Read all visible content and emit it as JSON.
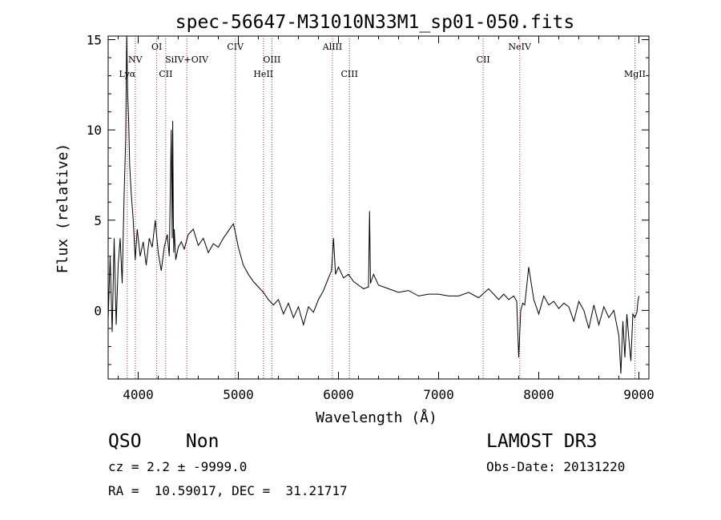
{
  "chart_data": {
    "type": "line",
    "title": "spec-56647-M31010N33M1_sp01-050.fits",
    "xlabel": "Wavelength (Å)",
    "ylabel": "Flux (relative)",
    "xlim": [
      3700,
      9100
    ],
    "ylim": [
      -3.8,
      15.2
    ],
    "xticks": [
      4000,
      5000,
      6000,
      7000,
      8000,
      9000
    ],
    "yticks": [
      0,
      5,
      10,
      15
    ],
    "grid": false,
    "line_color": "#000000",
    "marker_color": "#b03020",
    "line_markers": [
      {
        "label": "Lyα",
        "wavelength": 3891,
        "row": 3
      },
      {
        "label": "NV",
        "wavelength": 3970,
        "row": 2
      },
      {
        "label": "OI",
        "wavelength": 4185,
        "row": 1
      },
      {
        "label": "CII",
        "wavelength": 4275,
        "row": 3
      },
      {
        "label": "SiIV+OIV",
        "wavelength": 4485,
        "row": 2
      },
      {
        "label": "CIV",
        "wavelength": 4970,
        "row": 1
      },
      {
        "label": "HeII",
        "wavelength": 5250,
        "row": 3
      },
      {
        "label": "OIII",
        "wavelength": 5335,
        "row": 2
      },
      {
        "label": "AlIII",
        "wavelength": 5940,
        "row": 1
      },
      {
        "label": "CIII",
        "wavelength": 6110,
        "row": 3
      },
      {
        "label": "CII",
        "wavelength": 7445,
        "row": 2
      },
      {
        "label": "NeIV",
        "wavelength": 7810,
        "row": 1
      },
      {
        "label": "MgII",
        "wavelength": 8960,
        "row": 3
      }
    ],
    "series": [
      {
        "x": [
          3700,
          3720,
          3740,
          3760,
          3780,
          3800,
          3820,
          3840,
          3860,
          3875,
          3885,
          3895,
          3905,
          3915,
          3930,
          3950,
          3970,
          3990,
          4020,
          4050,
          4080,
          4110,
          4140,
          4170,
          4200,
          4230,
          4260,
          4290,
          4310,
          4330,
          4340,
          4345,
          4350,
          4355,
          4360,
          4375,
          4400,
          4430,
          4460,
          4500,
          4550,
          4600,
          4650,
          4700,
          4750,
          4800,
          4850,
          4900,
          4950,
          4975,
          5000,
          5050,
          5100,
          5150,
          5200,
          5250,
          5300,
          5350,
          5400,
          5450,
          5500,
          5550,
          5600,
          5650,
          5700,
          5750,
          5800,
          5850,
          5900,
          5930,
          5950,
          5970,
          6000,
          6050,
          6100,
          6150,
          6200,
          6250,
          6300,
          6310,
          6320,
          6350,
          6400,
          6500,
          6600,
          6700,
          6800,
          6900,
          7000,
          7100,
          7200,
          7300,
          7400,
          7500,
          7600,
          7650,
          7700,
          7750,
          7780,
          7800,
          7820,
          7840,
          7860,
          7900,
          7950,
          8000,
          8050,
          8100,
          8150,
          8200,
          8250,
          8300,
          8350,
          8400,
          8450,
          8500,
          8550,
          8600,
          8650,
          8700,
          8750,
          8800,
          8820,
          8840,
          8860,
          8880,
          8900,
          8920,
          8940,
          8960,
          8980,
          8990,
          9000
        ],
        "y": [
          -0.5,
          3.0,
          -1.2,
          4.0,
          -0.8,
          2.5,
          4.0,
          1.5,
          6.5,
          9.5,
          15.2,
          12.0,
          10.5,
          8.0,
          6.5,
          5.0,
          2.8,
          4.5,
          3.0,
          3.8,
          2.5,
          4.0,
          3.5,
          5.0,
          3.2,
          2.2,
          3.5,
          4.2,
          3.0,
          10.0,
          4.0,
          10.5,
          5.5,
          3.2,
          4.5,
          2.8,
          3.5,
          3.8,
          3.4,
          4.2,
          4.5,
          3.6,
          4.0,
          3.2,
          3.7,
          3.5,
          4.0,
          4.4,
          4.8,
          4.2,
          3.5,
          2.5,
          2.0,
          1.6,
          1.3,
          1.0,
          0.6,
          0.3,
          0.6,
          -0.2,
          0.4,
          -0.4,
          0.2,
          -0.8,
          0.2,
          -0.1,
          0.6,
          1.1,
          1.8,
          2.2,
          4.0,
          2.0,
          2.4,
          1.8,
          2.0,
          1.6,
          1.4,
          1.2,
          1.3,
          5.5,
          1.5,
          2.0,
          1.4,
          1.2,
          1.0,
          1.1,
          0.8,
          0.9,
          0.9,
          0.8,
          0.8,
          1.0,
          0.7,
          1.2,
          0.6,
          0.9,
          0.6,
          0.8,
          0.5,
          -2.6,
          0.0,
          0.4,
          0.3,
          2.4,
          0.6,
          -0.2,
          0.8,
          0.3,
          0.5,
          0.1,
          0.4,
          0.2,
          -0.6,
          0.5,
          0.0,
          -1.0,
          0.3,
          -0.8,
          0.2,
          -0.4,
          0.0,
          -1.4,
          -3.5,
          -0.6,
          -2.6,
          -0.2,
          -1.6,
          -2.8,
          -0.2,
          -0.4,
          -0.1,
          0.5,
          0.8
        ]
      }
    ]
  },
  "info": {
    "object_class": "QSO    Non",
    "survey": "LAMOST DR3",
    "redshift": "cz = 2.2 ± -9999.0",
    "obs_date": "Obs-Date: 20131220",
    "coords": "RA =  10.59017, DEC =  31.21717"
  }
}
